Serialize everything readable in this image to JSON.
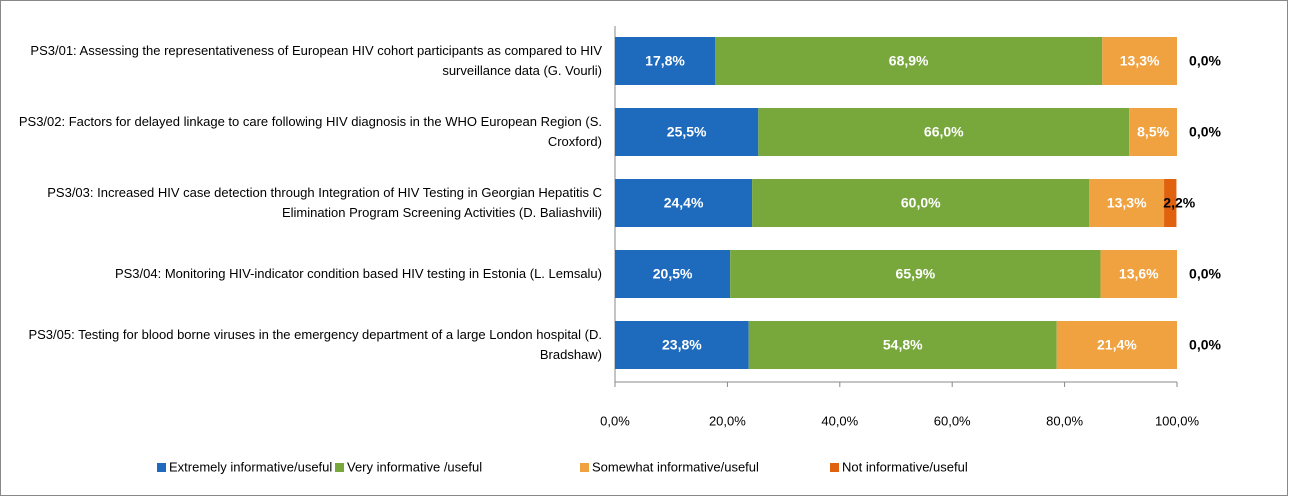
{
  "chart_data": {
    "type": "stacked_bar_horizontal",
    "categories": [
      "PS3/01: Assessing the representativeness of European HIV cohort participants as compared to HIV surveillance data (G. Vourli)",
      "PS3/02: Factors for delayed linkage to care following HIV diagnosis in the WHO European Region (S. Croxford)",
      "PS3/03: Increased HIV case detection through Integration of HIV Testing in Georgian Hepatitis C Elimination Program Screening Activities (D. Baliashvili)",
      "PS3/04: Monitoring HIV-indicator condition based HIV testing in Estonia (L. Lemsalu)",
      "PS3/05: Testing for blood borne viruses in the emergency department of a large London hospital (D. Bradshaw)"
    ],
    "series": [
      {
        "name": "Extremely informative/useful",
        "color": "#1e6bbd",
        "label_color": "#ffffff",
        "values": [
          17.8,
          25.5,
          24.4,
          20.5,
          23.8
        ],
        "value_labels": [
          "17,8%",
          "25,5%",
          "24,4%",
          "20,5%",
          "23,8%"
        ]
      },
      {
        "name": "Very informative /useful",
        "color": "#78a83c",
        "label_color": "#ffffff",
        "values": [
          68.9,
          66.0,
          60.0,
          65.9,
          54.8
        ],
        "value_labels": [
          "68,9%",
          "66,0%",
          "60,0%",
          "65,9%",
          "54,8%"
        ]
      },
      {
        "name": "Somewhat informative/useful",
        "color": "#f0a140",
        "label_color": "#ffffff",
        "values": [
          13.3,
          8.5,
          13.3,
          13.6,
          21.4
        ],
        "value_labels": [
          "13,3%",
          "8,5%",
          "13,3%",
          "13,6%",
          "21,4%"
        ]
      },
      {
        "name": "Not informative/useful",
        "color": "#e0620f",
        "label_color": "#000000",
        "values": [
          0.0,
          0.0,
          2.2,
          0.0,
          0.0
        ],
        "value_labels": [
          "0,0%",
          "0,0%",
          "2,2%",
          "0,0%",
          "0,0%"
        ]
      }
    ],
    "xlim": [
      0,
      100
    ],
    "xticks": [
      {
        "value": 0,
        "label": "0,0%"
      },
      {
        "value": 20,
        "label": "20,0%"
      },
      {
        "value": 40,
        "label": "40,0%"
      },
      {
        "value": 60,
        "label": "60,0%"
      },
      {
        "value": 80,
        "label": "80,0%"
      },
      {
        "value": 100,
        "label": "100,0%"
      }
    ],
    "legend": "bottom"
  }
}
